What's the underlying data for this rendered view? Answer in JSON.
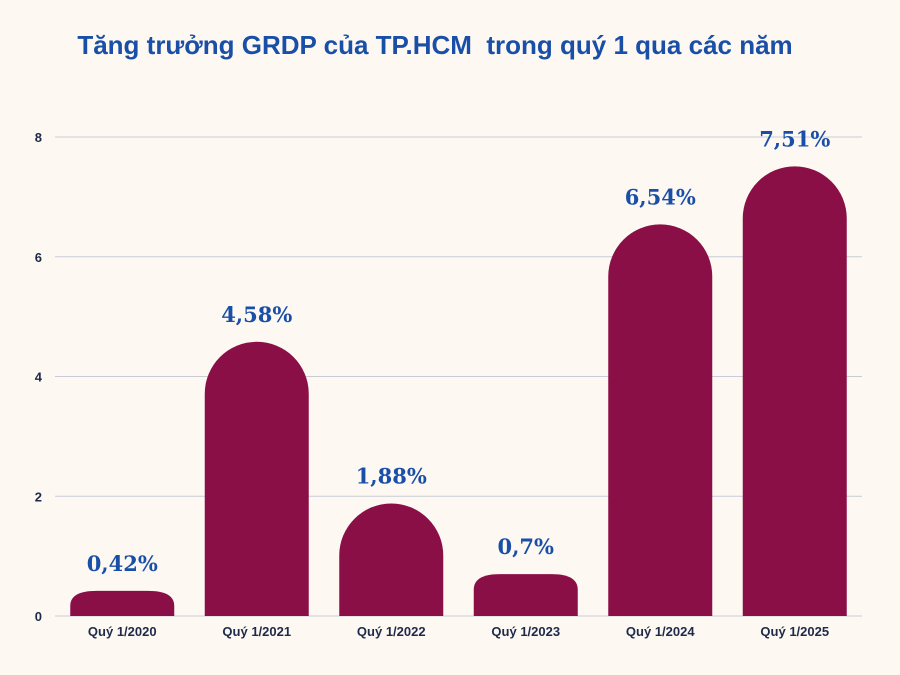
{
  "chart_data": {
    "type": "bar",
    "title": "Tăng trưởng GRDP của TP.HCM  trong quý 1 qua các năm",
    "xlabel": "",
    "ylabel": "",
    "categories": [
      "Quý 1/2020",
      "Quý 1/2021",
      "Quý 1/2022",
      "Quý 1/2023",
      "Quý 1/2024",
      "Quý 1/2025"
    ],
    "values": [
      0.42,
      4.58,
      1.88,
      0.7,
      6.54,
      7.51
    ],
    "data_labels": [
      "0,42%",
      "4,58%",
      "1,88%",
      "0,7%",
      "6,54%",
      "7,51%"
    ],
    "ylim": [
      0,
      8
    ],
    "yticks": [
      0,
      2,
      4,
      6,
      8
    ],
    "grid": true,
    "legend": "none",
    "bar_shape": "rounded-top",
    "colors": {
      "bar": "#8b0f47",
      "title": "#1a4fa8",
      "data_label": "#1a4fa8",
      "axis_text": "#1e2a4a",
      "grid": "#c9cbd6",
      "background": "#fdf8f2"
    }
  }
}
